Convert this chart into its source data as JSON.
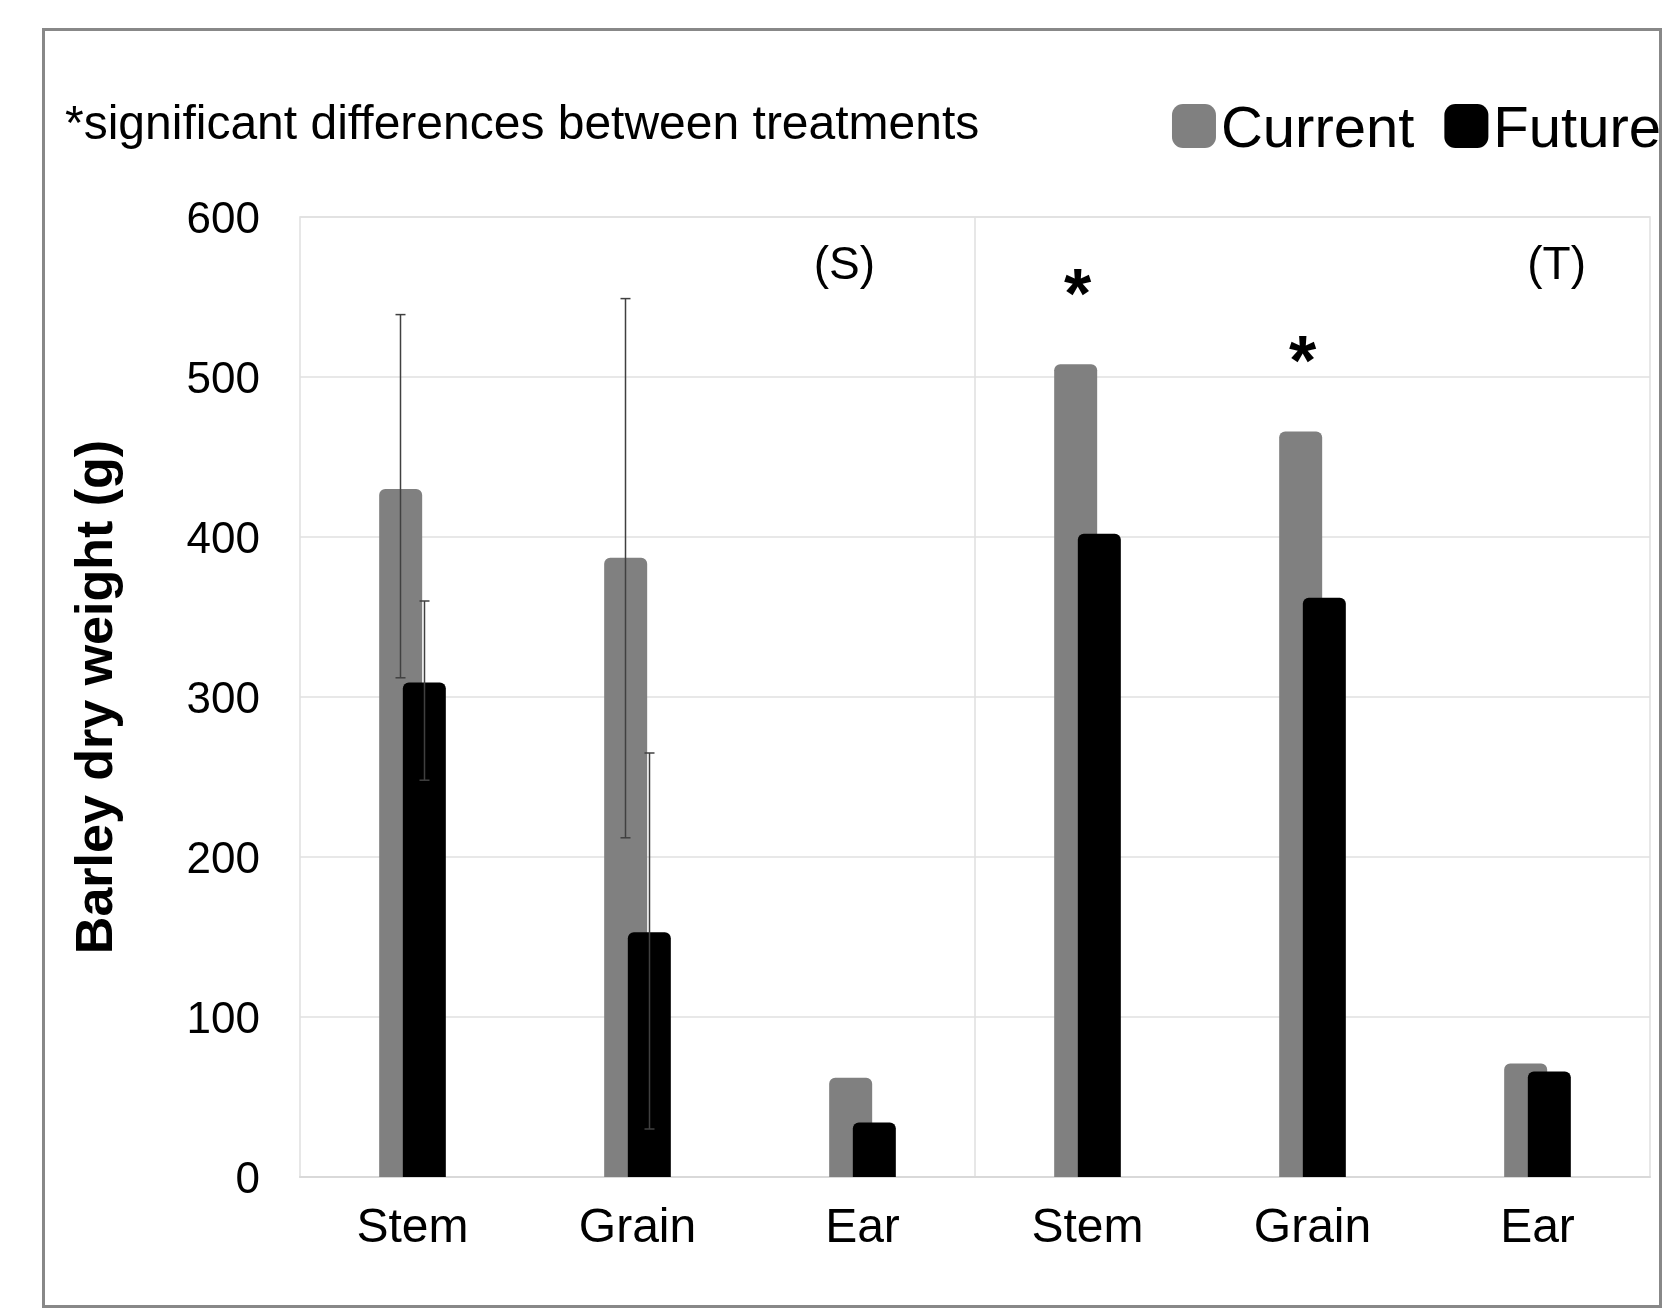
{
  "chart_data": [
    {
      "type": "bar",
      "title": "(S)",
      "ylabel": "Barley dry weight (g)",
      "annotations": [
        "*significant differences between treatments"
      ],
      "categories": [
        "Stem",
        "Grain",
        "Ear"
      ],
      "series": [
        {
          "color": "#808080",
          "values": [
            430,
            387,
            62
          ],
          "errors": [
            [
              312,
              539
            ],
            [
              212,
              549
            ],
            null
          ]
        },
        {
          "color": "#000000",
          "values": [
            309,
            153,
            34
          ],
          "errors": [
            [
              248,
              360
            ],
            [
              30,
              265
            ],
            null
          ]
        }
      ],
      "ylim": [
        0,
        600
      ],
      "yticks": [
        0,
        100,
        200,
        300,
        400,
        500,
        600
      ],
      "grid": "y"
    },
    {
      "type": "bar",
      "title": "(T)",
      "annotations": [
        "*",
        "*"
      ],
      "categories": [
        "Stem",
        "Grain",
        "Ear"
      ],
      "series": [
        {
          "name": "Current",
          "color": "#808080",
          "values": [
            508,
            466,
            71
          ]
        },
        {
          "name": "Future",
          "color": "#000000",
          "values": [
            402,
            362,
            66
          ]
        }
      ],
      "ylim": [
        0,
        600
      ],
      "yticks": [
        0,
        100,
        200,
        300,
        400,
        500,
        600
      ],
      "grid": "y",
      "tick_labels": "x",
      "legend": "top right"
    }
  ]
}
